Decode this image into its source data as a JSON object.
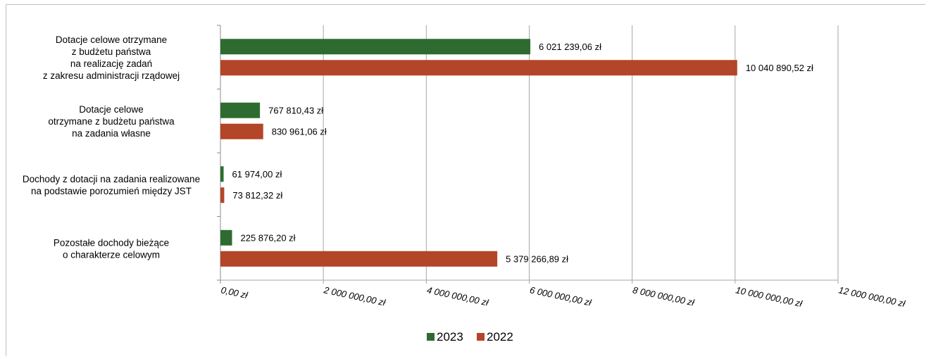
{
  "chart_data": {
    "type": "bar",
    "orientation": "horizontal",
    "categories": [
      [
        "Dotacje celowe otrzymane",
        "z budżetu państwa",
        "na realizację zadań",
        "z zakresu administracji rządowej"
      ],
      [
        "Dotacje celowe",
        "otrzymane z budżetu państwa",
        "na zadania własne"
      ],
      [
        "Dochody z dotacji na zadania realizowane",
        "na podstawie porozumień między JST"
      ],
      [
        "Pozostałe dochody bieżące",
        "o charakterze celowym"
      ]
    ],
    "series": [
      {
        "name": "2023",
        "color": "#2e6b30",
        "values": [
          6021239.06,
          767810.43,
          61974.0,
          225876.2
        ],
        "labels": [
          "6 021 239,06 zł",
          "767 810,43 zł",
          "61 974,00 zł",
          "225 876,20 zł"
        ]
      },
      {
        "name": "2022",
        "color": "#b34528",
        "values": [
          10040890.52,
          830961.06,
          73812.32,
          5379266.89
        ],
        "labels": [
          "10 040 890,52 zł",
          "830 961,06 zł",
          "73 812,32 zł",
          "5 379 266,89 zł"
        ]
      }
    ],
    "xlim": [
      0,
      12000000
    ],
    "xticks": [
      0,
      2000000,
      4000000,
      6000000,
      8000000,
      10000000,
      12000000
    ],
    "xtick_labels": [
      "0,00 zł",
      "2 000 000,00 zł",
      "4 000 000,00 zł",
      "6 000 000,00 zł",
      "8 000 000,00 zł",
      "10 000 000,00 zł",
      "12 000 000,00 zł"
    ],
    "grid": true,
    "legend_position": "bottom"
  }
}
